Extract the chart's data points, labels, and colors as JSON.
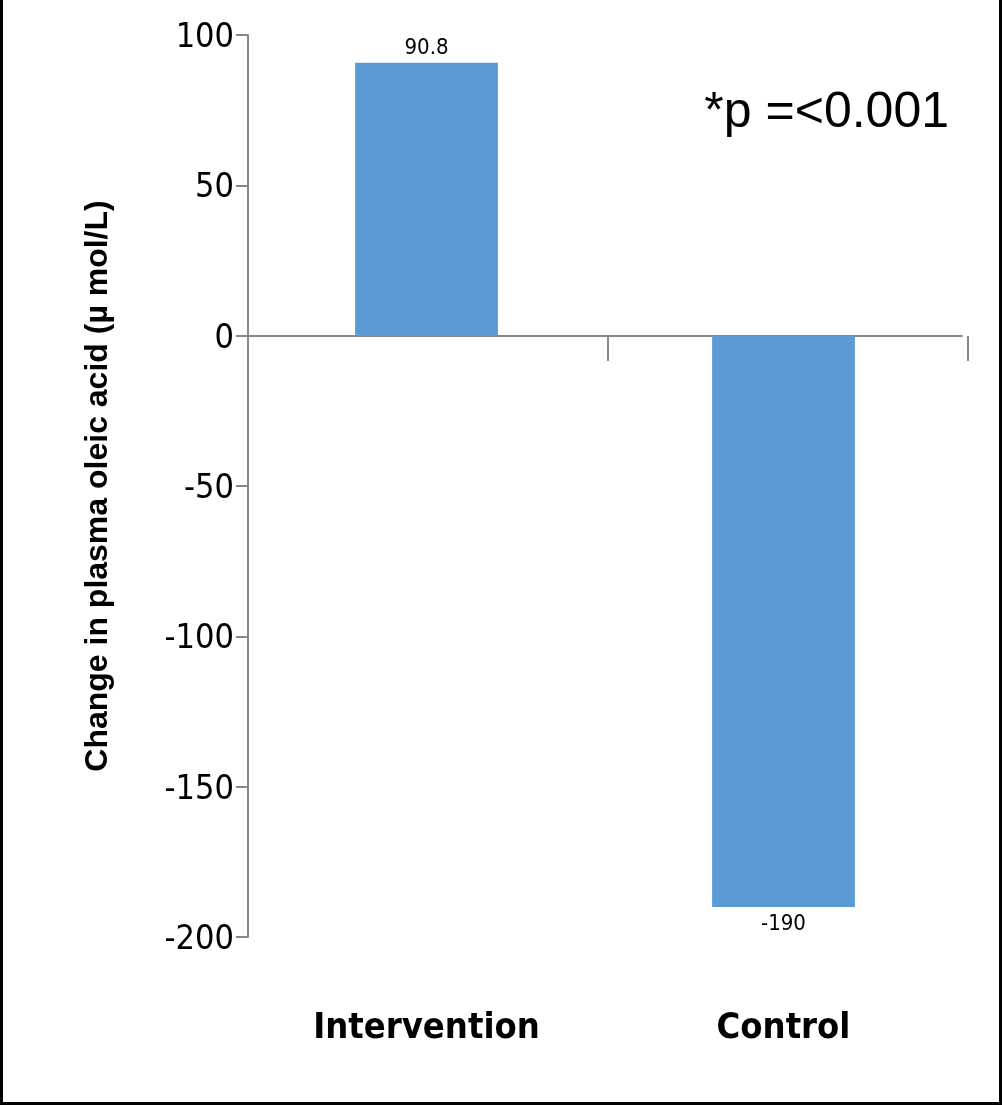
{
  "chart_data": {
    "type": "bar",
    "ylabel": "Change in plasma oleic acid (µ mol/L)",
    "categories": [
      "Intervention",
      "Control"
    ],
    "values": [
      90.8,
      -190
    ],
    "color": "#5b9bd5",
    "ylim": [
      -200,
      100
    ],
    "yticks": [
      -200,
      -150,
      -100,
      -50,
      0,
      50,
      100
    ],
    "data_labels": true,
    "annotations": [
      "*p =<0.001"
    ]
  }
}
